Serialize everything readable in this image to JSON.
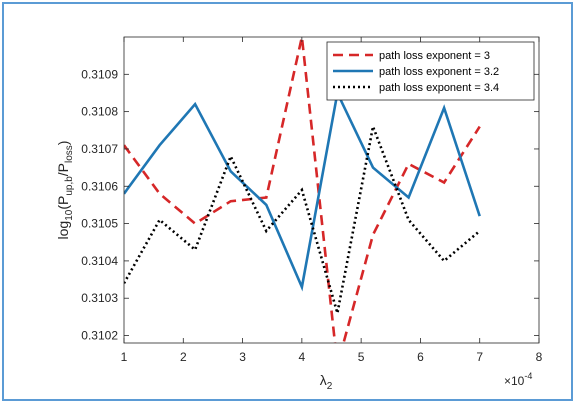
{
  "chart_data": {
    "type": "line",
    "xlabel_main": "λ",
    "xlabel_sub": "2",
    "ylabel_parts": [
      "log",
      "10",
      "(P",
      "up,b",
      "/P",
      "loss",
      ")"
    ],
    "exponent_mult": "×10",
    "exponent_power": "-4",
    "xlim": [
      1,
      8
    ],
    "ylim": [
      0.31018,
      0.311
    ],
    "xticks": [
      1,
      2,
      3,
      4,
      5,
      6,
      7,
      8
    ],
    "yticks": [
      0.3102,
      0.3103,
      0.3104,
      0.3105,
      0.3106,
      0.3107,
      0.3108,
      0.3109
    ],
    "ytick_labels": [
      "0.3102",
      "0.3103",
      "0.3104",
      "0.3105",
      "0.3106",
      "0.3107",
      "0.3108",
      "0.3109"
    ],
    "legend_position": "top-right",
    "series": [
      {
        "name": "path loss exponent = 3",
        "color": "#d62728",
        "style": "dashed",
        "x": [
          1,
          1.6,
          2.2,
          2.8,
          3.4,
          4.0,
          4.6,
          5.2,
          5.8,
          6.4,
          7.0
        ],
        "y": [
          0.31071,
          0.31058,
          0.3105,
          0.31056,
          0.31057,
          0.311,
          0.31012,
          0.31047,
          0.31066,
          0.31061,
          0.31076
        ]
      },
      {
        "name": "path loss exponent = 3.2",
        "color": "#1f77b4",
        "style": "solid",
        "x": [
          1,
          1.6,
          2.2,
          2.8,
          3.4,
          4.0,
          4.6,
          5.2,
          5.8,
          6.4,
          7.0
        ],
        "y": [
          0.31058,
          0.31071,
          0.31082,
          0.31064,
          0.31055,
          0.31033,
          0.31085,
          0.31065,
          0.31057,
          0.31081,
          0.31052
        ]
      },
      {
        "name": "path loss exponent = 3.4",
        "color": "#000000",
        "style": "dotted",
        "x": [
          1,
          1.6,
          2.2,
          2.8,
          3.4,
          4.0,
          4.6,
          5.2,
          5.8,
          6.4,
          7.0
        ],
        "y": [
          0.31034,
          0.31051,
          0.31043,
          0.31068,
          0.31048,
          0.31059,
          0.31026,
          0.31076,
          0.31051,
          0.3104,
          0.31048
        ]
      }
    ]
  }
}
